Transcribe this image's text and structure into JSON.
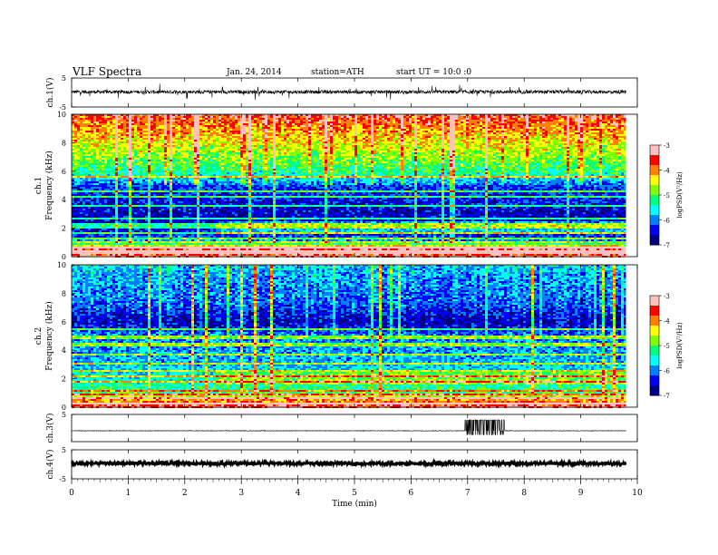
{
  "header": {
    "title": "VLF  Spectra",
    "date": "Jan. 24, 2014",
    "station": "station=ATH",
    "start": "start  UT =   10:0  :0"
  },
  "chart_data": [
    {
      "type": "line",
      "panel": "ch1-waveform",
      "ylabel": "ch.1(V)",
      "ylim": [
        -5,
        5
      ],
      "ytick_labels": [
        "5",
        "-5"
      ],
      "xlim": [
        0,
        10
      ],
      "x_extent": [
        0,
        9.8
      ],
      "baseline": 0.2,
      "noise_amplitude": 0.6,
      "spike_amplitude": 2.5,
      "color": "#000000"
    },
    {
      "type": "heatmap",
      "panel": "ch1-spectrogram",
      "ylabel_channel": "ch.1",
      "ylabel": "Frequency  (kHz)",
      "ylim": [
        0,
        10
      ],
      "ytick_labels": [
        "0",
        "2",
        "4",
        "6",
        "8",
        "10"
      ],
      "xlim": [
        0,
        10
      ],
      "x_extent": [
        0,
        9.8
      ],
      "colorbar": {
        "label": "logPSD(V²/Hz)",
        "range": [
          -7,
          -3
        ],
        "tick_labels": [
          "-3",
          "-4",
          "-5",
          "-6",
          "-7"
        ]
      },
      "profile_khz": [
        [
          0,
          -3.2
        ],
        [
          0.3,
          -4.0
        ],
        [
          0.5,
          -3.4
        ],
        [
          0.8,
          -4.6
        ],
        [
          1.0,
          -5.8
        ],
        [
          1.5,
          -6.3
        ],
        [
          2.0,
          -6.5
        ],
        [
          3.0,
          -6.6
        ],
        [
          4.0,
          -6.4
        ],
        [
          5.0,
          -6.2
        ],
        [
          5.5,
          -5.6
        ],
        [
          6.0,
          -5.2
        ],
        [
          7.0,
          -4.8
        ],
        [
          8.0,
          -4.4
        ],
        [
          9.0,
          -4.0
        ],
        [
          10.0,
          -3.6
        ]
      ],
      "tone_lines_khz": [
        0.2,
        0.4,
        0.65,
        1.0,
        1.3,
        1.7,
        2.1,
        2.3,
        2.7,
        3.6,
        4.2,
        4.6,
        5.6
      ],
      "event_minutes": [
        2.55
      ],
      "colors": [
        "#000080",
        "#0000ff",
        "#0080ff",
        "#00ffff",
        "#00ff80",
        "#80ff00",
        "#ffff00",
        "#ff8000",
        "#ff0000",
        "#ffc0c0"
      ]
    },
    {
      "type": "heatmap",
      "panel": "ch2-spectrogram",
      "ylabel_channel": "ch.2",
      "ylabel": "Frequency  (kHz)",
      "ylim": [
        0,
        10
      ],
      "ytick_labels": [
        "0",
        "2",
        "4",
        "6",
        "8",
        "10"
      ],
      "xlim": [
        0,
        10
      ],
      "x_extent": [
        0,
        9.8
      ],
      "colorbar": {
        "label": "logPSD(V²/Hz)",
        "range": [
          -7,
          -3
        ],
        "tick_labels": [
          "-3",
          "-4",
          "-5",
          "-6",
          "-7"
        ]
      },
      "profile_khz": [
        [
          0,
          -3.4
        ],
        [
          0.3,
          -3.8
        ],
        [
          0.6,
          -4.2
        ],
        [
          1.0,
          -5.0
        ],
        [
          1.5,
          -5.3
        ],
        [
          2.0,
          -5.5
        ],
        [
          3.0,
          -5.8
        ],
        [
          4.0,
          -5.9
        ],
        [
          5.0,
          -6.0
        ],
        [
          5.5,
          -6.3
        ],
        [
          6.0,
          -6.6
        ],
        [
          7.0,
          -6.2
        ],
        [
          8.0,
          -6.0
        ],
        [
          9.0,
          -5.9
        ],
        [
          10.0,
          -5.7
        ]
      ],
      "tone_lines_khz": [
        0.3,
        0.6,
        0.9,
        1.2,
        1.8,
        2.2,
        2.5,
        3.0,
        3.7,
        4.4,
        4.9,
        5.5
      ],
      "event_minutes": [
        2.55,
        3.4
      ],
      "colors": [
        "#000080",
        "#0000ff",
        "#0080ff",
        "#00ffff",
        "#00ff80",
        "#80ff00",
        "#ffff00",
        "#ff8000",
        "#ff0000",
        "#ffc0c0"
      ]
    },
    {
      "type": "line",
      "panel": "ch3-waveform",
      "ylabel": "ch.3(V)",
      "ylim": [
        -5,
        5
      ],
      "ytick_labels": [
        "5"
      ],
      "xlim": [
        0,
        10
      ],
      "x_extent": [
        0,
        9.8
      ],
      "baseline": -1.0,
      "noise_amplitude": 0.1,
      "burst_interval_minutes": [
        6.95,
        7.65
      ],
      "burst_high": 3.0,
      "burst_low": -2.5,
      "color": "#000000"
    },
    {
      "type": "line",
      "panel": "ch4-waveform",
      "ylabel": "ch.4(V)",
      "ylim": [
        -5,
        5
      ],
      "ytick_labels": [
        "5",
        "-5"
      ],
      "xlim": [
        0,
        10
      ],
      "x_extent": [
        0,
        9.8
      ],
      "baseline": 0.3,
      "noise_amplitude": 0.5,
      "color": "#000000"
    }
  ],
  "xaxis": {
    "label": "Time  (min)",
    "ticks": [
      0,
      1,
      2,
      3,
      4,
      5,
      6,
      7,
      8,
      9,
      10
    ],
    "tick_labels": [
      "0",
      "1",
      "2",
      "3",
      "4",
      "5",
      "6",
      "7",
      "8",
      "9",
      "10"
    ]
  }
}
